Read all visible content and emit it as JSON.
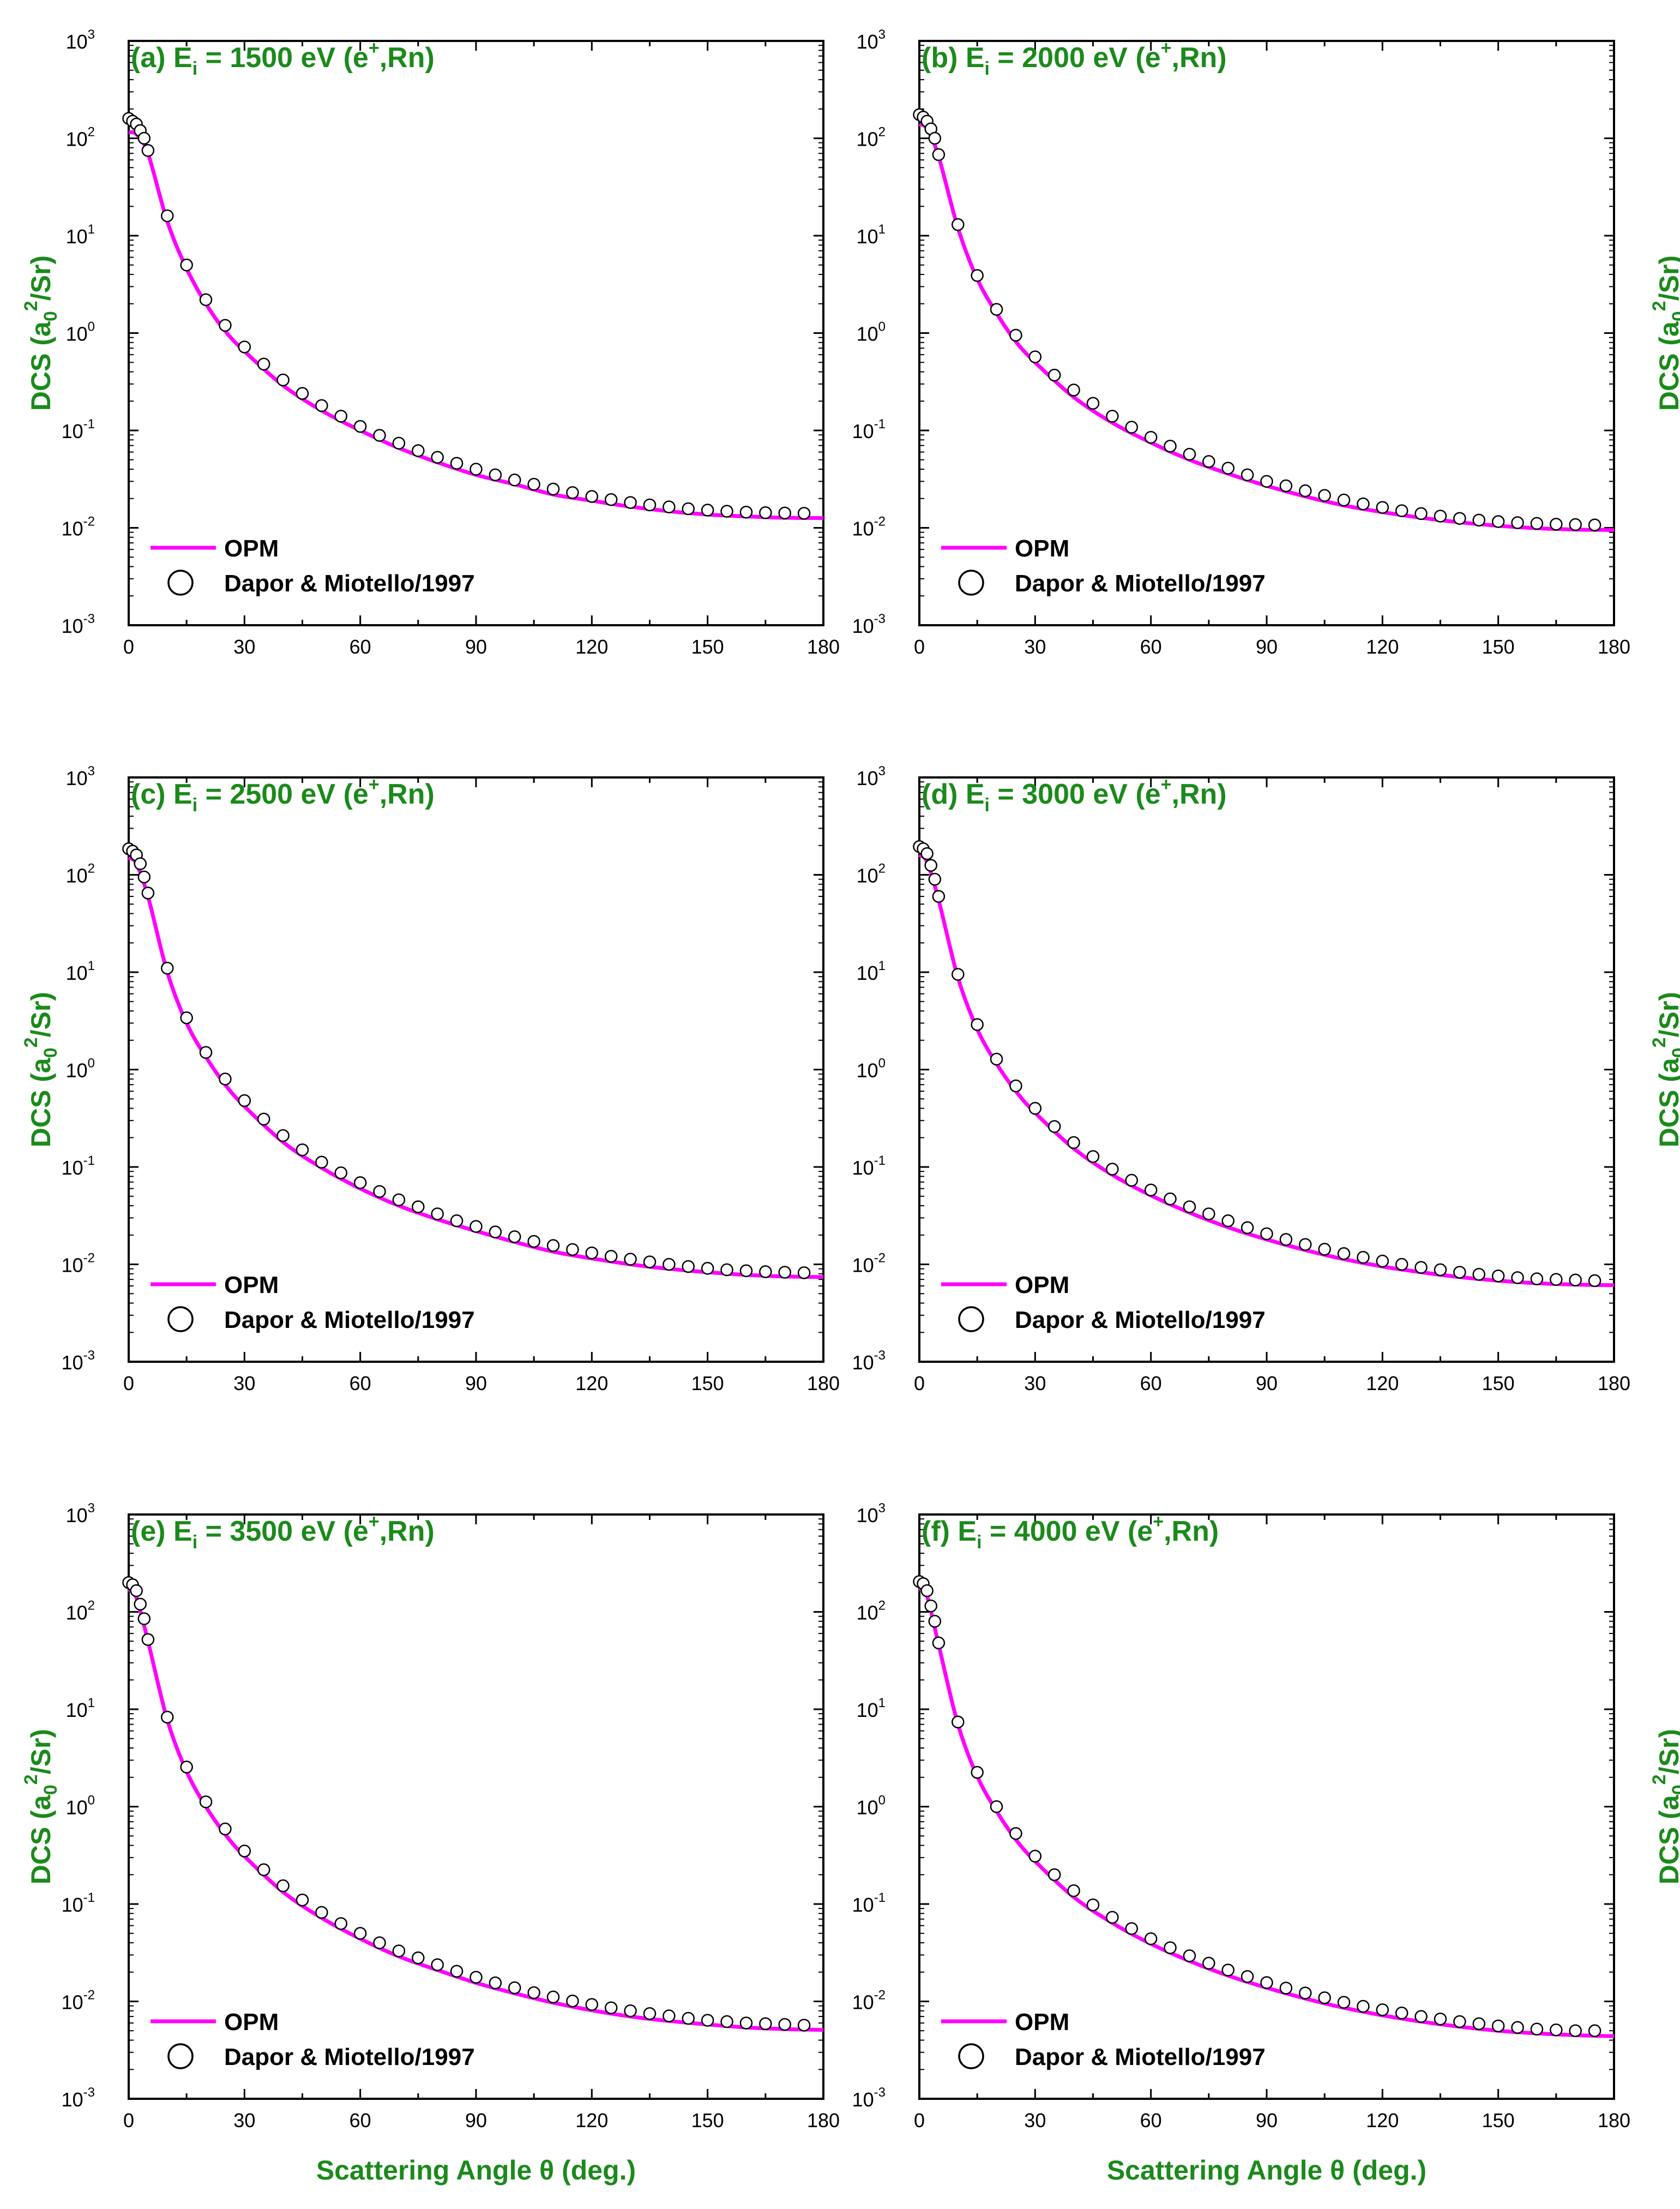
{
  "colors": {
    "theory_line": "#ff00ff",
    "label_green": "#1b8a1b",
    "axis": "#000000"
  },
  "axes": {
    "x_label": "Scattering Angle θ (deg.)",
    "y_label": "DCS (a0²/Sr)",
    "x_ticks": [
      "0",
      "30",
      "60",
      "90",
      "120",
      "150",
      "180"
    ],
    "y_ticks": [
      {
        "base": "10",
        "exp": "-3"
      },
      {
        "base": "10",
        "exp": "-2"
      },
      {
        "base": "10",
        "exp": "-1"
      },
      {
        "base": "10",
        "exp": "0"
      },
      {
        "base": "10",
        "exp": "1"
      },
      {
        "base": "10",
        "exp": "2"
      },
      {
        "base": "10",
        "exp": "3"
      }
    ]
  },
  "legend": {
    "line_label": "OPM",
    "marker_label": "Dapor & Miotello/1997"
  },
  "chart_data": [
    {
      "type": "line",
      "title": "(a) Ei = 1500 eV (e+,Rn)",
      "xlim": [
        0,
        180
      ],
      "ylim": [
        0.001,
        1000
      ],
      "yscale": "log",
      "xlabel": "",
      "ylabel": "DCS (a0²/Sr)",
      "legend": "bottom-left",
      "series": [
        {
          "name": "OPM",
          "x": [
            0,
            2,
            5,
            10,
            15,
            20,
            25,
            30,
            40,
            50,
            60,
            70,
            80,
            90,
            100,
            110,
            120,
            130,
            140,
            150,
            160,
            170,
            180
          ],
          "y": [
            115,
            110,
            70,
            14,
            4.6,
            2.0,
            1.05,
            0.65,
            0.29,
            0.16,
            0.1,
            0.066,
            0.047,
            0.035,
            0.028,
            0.022,
            0.019,
            0.0165,
            0.0148,
            0.0137,
            0.0131,
            0.0127,
            0.0126
          ]
        },
        {
          "name": "Dapor & Miotello/1997",
          "x": [
            0,
            1,
            2,
            3,
            4,
            5,
            10,
            15,
            20,
            25,
            30,
            35,
            40,
            45,
            50,
            55,
            60,
            65,
            70,
            75,
            80,
            85,
            90,
            95,
            100,
            105,
            110,
            115,
            120,
            125,
            130,
            135,
            140,
            145,
            150,
            155,
            160,
            165,
            170,
            175
          ],
          "y": [
            160,
            150,
            140,
            120,
            100,
            75,
            16,
            5.0,
            2.2,
            1.2,
            0.72,
            0.48,
            0.33,
            0.24,
            0.18,
            0.14,
            0.11,
            0.089,
            0.074,
            0.062,
            0.053,
            0.046,
            0.04,
            0.035,
            0.031,
            0.028,
            0.025,
            0.023,
            0.021,
            0.0195,
            0.0182,
            0.0172,
            0.0164,
            0.0157,
            0.0152,
            0.0148,
            0.0145,
            0.0143,
            0.0142,
            0.0141
          ]
        }
      ]
    },
    {
      "type": "line",
      "title": "(b) Ei = 2000 eV (e+,Rn)",
      "xlim": [
        0,
        180
      ],
      "ylim": [
        0.001,
        1000
      ],
      "yscale": "log",
      "xlabel": "",
      "ylabel": "DCS (a0²/Sr)",
      "legend": "bottom-left",
      "series": [
        {
          "name": "OPM",
          "x": [
            0,
            2,
            5,
            10,
            15,
            20,
            25,
            30,
            40,
            50,
            60,
            70,
            80,
            90,
            100,
            110,
            120,
            130,
            140,
            150,
            160,
            170,
            180
          ],
          "y": [
            140,
            125,
            65,
            12,
            3.6,
            1.6,
            0.82,
            0.5,
            0.22,
            0.12,
            0.075,
            0.05,
            0.036,
            0.027,
            0.021,
            0.017,
            0.0145,
            0.0127,
            0.0114,
            0.0105,
            0.0099,
            0.0096,
            0.0095
          ]
        },
        {
          "name": "Dapor & Miotello/1997",
          "x": [
            0,
            1,
            2,
            3,
            4,
            5,
            10,
            15,
            20,
            25,
            30,
            35,
            40,
            45,
            50,
            55,
            60,
            65,
            70,
            75,
            80,
            85,
            90,
            95,
            100,
            105,
            110,
            115,
            120,
            125,
            130,
            135,
            140,
            145,
            150,
            155,
            160,
            165,
            170,
            175
          ],
          "y": [
            175,
            165,
            150,
            125,
            100,
            68,
            13,
            3.9,
            1.75,
            0.95,
            0.57,
            0.37,
            0.26,
            0.19,
            0.14,
            0.108,
            0.085,
            0.069,
            0.057,
            0.048,
            0.041,
            0.035,
            0.03,
            0.027,
            0.024,
            0.0215,
            0.0193,
            0.0176,
            0.0162,
            0.015,
            0.014,
            0.0132,
            0.0125,
            0.012,
            0.0116,
            0.0113,
            0.0111,
            0.0109,
            0.0108,
            0.0107
          ]
        }
      ]
    },
    {
      "type": "line",
      "title": "(c) Ei = 2500 eV (e+,Rn)",
      "xlim": [
        0,
        180
      ],
      "ylim": [
        0.001,
        1000
      ],
      "yscale": "log",
      "xlabel": "",
      "ylabel": "DCS (a0²/Sr)",
      "legend": "bottom-left",
      "series": [
        {
          "name": "OPM",
          "x": [
            0,
            2,
            5,
            10,
            15,
            20,
            25,
            30,
            40,
            50,
            60,
            70,
            80,
            90,
            100,
            110,
            120,
            130,
            140,
            150,
            160,
            170,
            180
          ],
          "y": [
            150,
            130,
            60,
            10,
            3.0,
            1.35,
            0.7,
            0.42,
            0.18,
            0.098,
            0.06,
            0.04,
            0.029,
            0.022,
            0.017,
            0.0135,
            0.0115,
            0.01,
            0.009,
            0.0083,
            0.0078,
            0.0075,
            0.0074
          ]
        },
        {
          "name": "Dapor & Miotello/1997",
          "x": [
            0,
            1,
            2,
            3,
            4,
            5,
            10,
            15,
            20,
            25,
            30,
            35,
            40,
            45,
            50,
            55,
            60,
            65,
            70,
            75,
            80,
            85,
            90,
            95,
            100,
            105,
            110,
            115,
            120,
            125,
            130,
            135,
            140,
            145,
            150,
            155,
            160,
            165,
            170,
            175
          ],
          "y": [
            185,
            175,
            160,
            130,
            95,
            65,
            11,
            3.4,
            1.5,
            0.8,
            0.48,
            0.31,
            0.21,
            0.15,
            0.112,
            0.087,
            0.069,
            0.056,
            0.046,
            0.039,
            0.033,
            0.028,
            0.0245,
            0.0215,
            0.0192,
            0.0172,
            0.0156,
            0.0142,
            0.0131,
            0.0121,
            0.0113,
            0.0106,
            0.01,
            0.0095,
            0.0091,
            0.0088,
            0.0086,
            0.0084,
            0.0083,
            0.0082
          ]
        }
      ]
    },
    {
      "type": "line",
      "title": "(d) Ei = 3000 eV (e+,Rn)",
      "xlim": [
        0,
        180
      ],
      "ylim": [
        0.001,
        1000
      ],
      "yscale": "log",
      "xlabel": "",
      "ylabel": "DCS (a0²/Sr)",
      "legend": "bottom-left",
      "series": [
        {
          "name": "OPM",
          "x": [
            0,
            2,
            5,
            10,
            15,
            20,
            25,
            30,
            40,
            50,
            60,
            70,
            80,
            90,
            100,
            110,
            120,
            130,
            140,
            150,
            160,
            170,
            180
          ],
          "y": [
            160,
            135,
            55,
            8.8,
            2.6,
            1.15,
            0.6,
            0.36,
            0.155,
            0.083,
            0.051,
            0.034,
            0.024,
            0.018,
            0.014,
            0.0113,
            0.0095,
            0.0083,
            0.0074,
            0.0068,
            0.0064,
            0.0062,
            0.0061
          ]
        },
        {
          "name": "Dapor & Miotello/1997",
          "x": [
            0,
            1,
            2,
            3,
            4,
            5,
            10,
            15,
            20,
            25,
            30,
            35,
            40,
            45,
            50,
            55,
            60,
            65,
            70,
            75,
            80,
            85,
            90,
            95,
            100,
            105,
            110,
            115,
            120,
            125,
            130,
            135,
            140,
            145,
            150,
            155,
            160,
            165,
            170,
            175
          ],
          "y": [
            195,
            185,
            165,
            125,
            90,
            60,
            9.5,
            2.9,
            1.28,
            0.68,
            0.4,
            0.26,
            0.178,
            0.128,
            0.095,
            0.073,
            0.058,
            0.047,
            0.039,
            0.033,
            0.028,
            0.0238,
            0.0206,
            0.018,
            0.016,
            0.0143,
            0.0129,
            0.0118,
            0.0108,
            0.01,
            0.0093,
            0.0088,
            0.0083,
            0.0079,
            0.0076,
            0.0073,
            0.0071,
            0.007,
            0.0069,
            0.0068
          ]
        }
      ]
    },
    {
      "type": "line",
      "title": "(e) Ei = 3500 eV (e+,Rn)",
      "xlim": [
        0,
        180
      ],
      "ylim": [
        0.001,
        1000
      ],
      "yscale": "log",
      "xlabel": "Scattering Angle θ (deg.)",
      "ylabel": "DCS (a0²/Sr)",
      "legend": "bottom-left",
      "series": [
        {
          "name": "OPM",
          "x": [
            0,
            2,
            5,
            10,
            15,
            20,
            25,
            30,
            40,
            50,
            60,
            70,
            80,
            90,
            100,
            110,
            120,
            130,
            140,
            150,
            160,
            170,
            180
          ],
          "y": [
            170,
            140,
            50,
            7.8,
            2.3,
            1.0,
            0.52,
            0.31,
            0.133,
            0.072,
            0.044,
            0.029,
            0.021,
            0.0155,
            0.0121,
            0.0097,
            0.0081,
            0.007,
            0.0063,
            0.0058,
            0.0054,
            0.0052,
            0.0051
          ]
        },
        {
          "name": "Dapor & Miotello/1997",
          "x": [
            0,
            1,
            2,
            3,
            4,
            5,
            10,
            15,
            20,
            25,
            30,
            35,
            40,
            45,
            50,
            55,
            60,
            65,
            70,
            75,
            80,
            85,
            90,
            95,
            100,
            105,
            110,
            115,
            120,
            125,
            130,
            135,
            140,
            145,
            150,
            155,
            160,
            165,
            170,
            175
          ],
          "y": [
            200,
            190,
            165,
            120,
            85,
            52,
            8.3,
            2.55,
            1.12,
            0.59,
            0.35,
            0.225,
            0.154,
            0.11,
            0.082,
            0.063,
            0.05,
            0.04,
            0.033,
            0.028,
            0.0238,
            0.0204,
            0.0177,
            0.0155,
            0.0138,
            0.0123,
            0.0111,
            0.0101,
            0.0093,
            0.0086,
            0.008,
            0.0075,
            0.0071,
            0.0067,
            0.0064,
            0.0062,
            0.006,
            0.0059,
            0.0058,
            0.0057
          ]
        }
      ]
    },
    {
      "type": "line",
      "title": "(f) Ei = 4000 eV (e+,Rn)",
      "xlim": [
        0,
        180
      ],
      "ylim": [
        0.001,
        1000
      ],
      "yscale": "log",
      "xlabel": "Scattering Angle θ (deg.)",
      "ylabel": "DCS (a0²/Sr)",
      "legend": "bottom-left",
      "series": [
        {
          "name": "OPM",
          "x": [
            0,
            2,
            5,
            10,
            15,
            20,
            25,
            30,
            40,
            50,
            60,
            70,
            80,
            90,
            100,
            110,
            120,
            130,
            140,
            150,
            160,
            170,
            180
          ],
          "y": [
            175,
            145,
            46,
            7.0,
            2.05,
            0.9,
            0.46,
            0.275,
            0.118,
            0.064,
            0.039,
            0.026,
            0.0184,
            0.0138,
            0.0107,
            0.0086,
            0.0072,
            0.0062,
            0.0055,
            0.005,
            0.0047,
            0.0045,
            0.0044
          ]
        },
        {
          "name": "Dapor & Miotello/1997",
          "x": [
            0,
            1,
            2,
            3,
            4,
            5,
            10,
            15,
            20,
            25,
            30,
            35,
            40,
            45,
            50,
            55,
            60,
            65,
            70,
            75,
            80,
            85,
            90,
            95,
            100,
            105,
            110,
            115,
            120,
            125,
            130,
            135,
            140,
            145,
            150,
            155,
            160,
            165,
            170,
            175
          ],
          "y": [
            205,
            195,
            165,
            115,
            80,
            48,
            7.4,
            2.25,
            1.0,
            0.53,
            0.31,
            0.2,
            0.137,
            0.098,
            0.073,
            0.056,
            0.044,
            0.0356,
            0.0294,
            0.0247,
            0.021,
            0.018,
            0.0156,
            0.0137,
            0.0122,
            0.0109,
            0.0098,
            0.0089,
            0.0082,
            0.0076,
            0.007,
            0.0066,
            0.0062,
            0.0059,
            0.0056,
            0.0054,
            0.0052,
            0.0051,
            0.005,
            0.005
          ]
        }
      ]
    }
  ]
}
